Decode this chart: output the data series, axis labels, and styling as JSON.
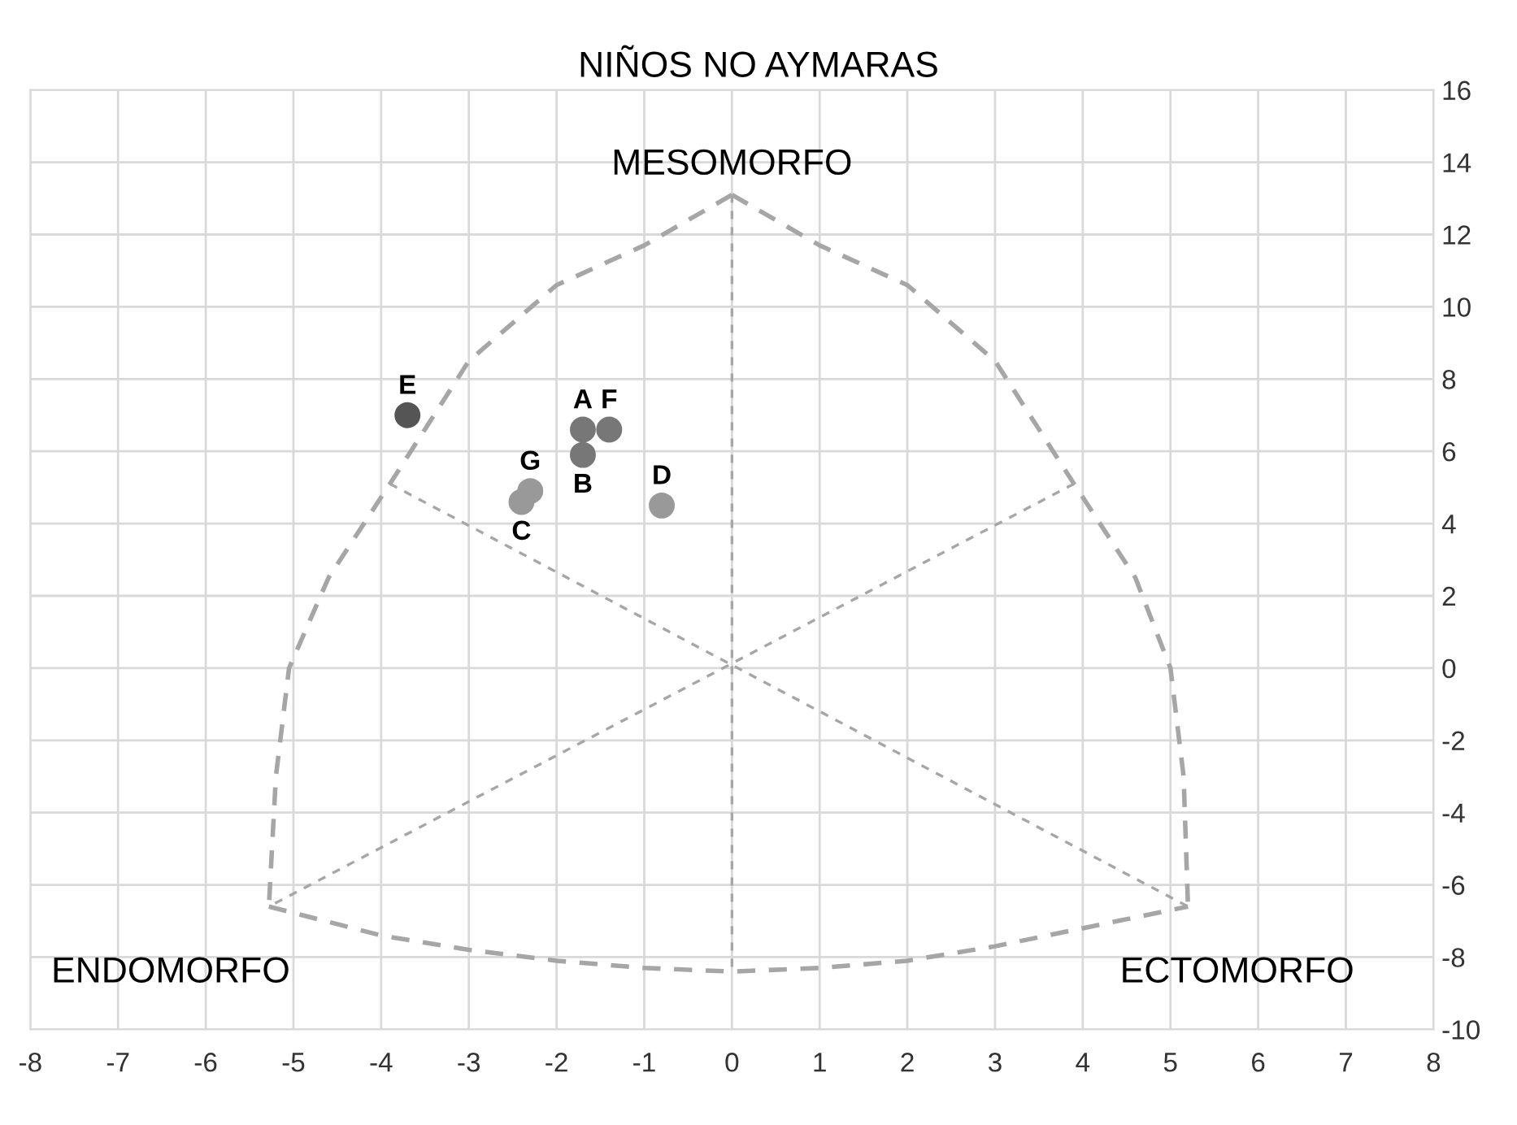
{
  "chart_data": {
    "type": "scatter",
    "title": "NIÑOS NO AYMARAS",
    "xlim": [
      -8,
      8
    ],
    "xticks": [
      -8,
      -7,
      -6,
      -5,
      -4,
      -3,
      -2,
      -1,
      0,
      1,
      2,
      3,
      4,
      5,
      6,
      7,
      8
    ],
    "ylim": [
      -10,
      16
    ],
    "yticks": [
      -10,
      -8,
      -6,
      -4,
      -2,
      0,
      2,
      4,
      6,
      8,
      10,
      12,
      14,
      16
    ],
    "grid": true,
    "legend": false,
    "series": [
      {
        "type": "line",
        "line_style": "dashed",
        "color": "#a6a6a6",
        "x": [
          0,
          -1,
          -2,
          -3,
          -3.9,
          -4.6,
          -5.05,
          -5.2,
          -5.28
        ],
        "values": [
          13.1,
          11.7,
          10.6,
          8.5,
          5.1,
          2.5,
          0,
          -3,
          -6.6
        ]
      },
      {
        "type": "line",
        "line_style": "dashed",
        "color": "#a6a6a6",
        "x": [
          0,
          1,
          2,
          3,
          3.9,
          4.6,
          5.0,
          5.15,
          5.2
        ],
        "values": [
          13.1,
          11.7,
          10.6,
          8.5,
          5.1,
          2.5,
          0,
          -3,
          -6.6
        ]
      },
      {
        "type": "line",
        "line_style": "dashed",
        "color": "#a6a6a6",
        "x": [
          -5.28,
          -4,
          -3,
          -2,
          -1,
          0,
          1,
          2,
          3,
          4,
          5.2
        ],
        "values": [
          -6.6,
          -7.4,
          -7.8,
          -8.1,
          -8.3,
          -8.4,
          -8.3,
          -8.1,
          -7.7,
          -7.2,
          -6.6
        ]
      },
      {
        "type": "line",
        "line_style": "dotted",
        "color": "#a6a6a6",
        "x": [
          0,
          0
        ],
        "values": [
          13.1,
          -8.4
        ]
      },
      {
        "type": "line",
        "line_style": "dotted",
        "color": "#a6a6a6",
        "x": [
          -3.9,
          5.2
        ],
        "values": [
          5.1,
          -6.6
        ]
      },
      {
        "type": "line",
        "line_style": "dotted",
        "color": "#a6a6a6",
        "x": [
          3.9,
          -5.28
        ],
        "values": [
          5.1,
          -6.6
        ]
      },
      {
        "name": "E",
        "color": "#555555",
        "marker": "circle",
        "x": [
          -3.7
        ],
        "values": [
          7.0
        ]
      },
      {
        "name": "A",
        "color": "#777777",
        "marker": "circle",
        "x": [
          -1.7
        ],
        "values": [
          6.6
        ]
      },
      {
        "name": "F",
        "color": "#777777",
        "marker": "circle",
        "x": [
          -1.4
        ],
        "values": [
          6.6
        ]
      },
      {
        "name": "B",
        "color": "#777777",
        "marker": "circle",
        "x": [
          -1.7
        ],
        "values": [
          5.9
        ]
      },
      {
        "name": "G",
        "color": "#999999",
        "marker": "circle",
        "x": [
          -2.3
        ],
        "values": [
          4.9
        ]
      },
      {
        "name": "C",
        "color": "#999999",
        "marker": "circle",
        "x": [
          -2.4
        ],
        "values": [
          4.6
        ]
      },
      {
        "name": "D",
        "color": "#999999",
        "marker": "circle",
        "x": [
          -0.8
        ],
        "values": [
          4.5
        ]
      }
    ],
    "annotations": [
      "MESOMORFO",
      "ENDOMORFO",
      "ECTOMORFO"
    ]
  }
}
